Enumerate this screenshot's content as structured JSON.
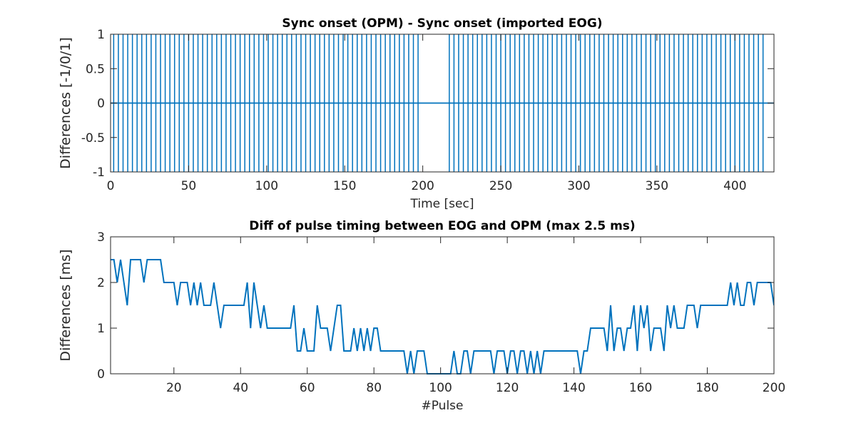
{
  "chart_data": [
    {
      "type": "spike",
      "title": "Sync onset (OPM) - Sync onset (imported EOG)",
      "xlabel": "Time [sec]",
      "ylabel": "Differences [-1/0/1]",
      "xlim": [
        0,
        425
      ],
      "xticks": [
        0,
        50,
        100,
        150,
        200,
        250,
        300,
        350,
        400
      ],
      "ylim": [
        -1,
        1
      ],
      "yticks": [
        -1,
        -0.5,
        0,
        0.5,
        1
      ],
      "series": [
        {
          "color": "#0072bd",
          "x": [
            2,
            5,
            8,
            11,
            14,
            17,
            20,
            23,
            26,
            29,
            32,
            35,
            38,
            41,
            44,
            47,
            50,
            53,
            56,
            59,
            62,
            65,
            68,
            71,
            74,
            77,
            80,
            83,
            86,
            89,
            92,
            95,
            98,
            101,
            104,
            107,
            110,
            113,
            116,
            119,
            122,
            125,
            128,
            131,
            134,
            137,
            140,
            143,
            146,
            149,
            152,
            155,
            158,
            161,
            164,
            167,
            170,
            173,
            176,
            179,
            182,
            185,
            188,
            191,
            194,
            197,
            217,
            220,
            223,
            226,
            229,
            232,
            235,
            238,
            241,
            244,
            247,
            250,
            253,
            256,
            259,
            262,
            265,
            268,
            271,
            274,
            277,
            280,
            283,
            286,
            289,
            292,
            295,
            298,
            301,
            304,
            307,
            310,
            313,
            316,
            319,
            322,
            325,
            328,
            331,
            334,
            337,
            340,
            343,
            346,
            349,
            352,
            355,
            358,
            361,
            364,
            367,
            370,
            373,
            376,
            379,
            382,
            385,
            388,
            391,
            394,
            397,
            400,
            403,
            406,
            409,
            412,
            415,
            418
          ],
          "values": [
            1,
            1,
            1,
            1,
            1,
            1,
            1,
            1,
            1,
            1,
            1,
            1,
            1,
            1,
            1,
            1,
            1,
            1,
            1,
            1,
            1,
            1,
            1,
            1,
            1,
            1,
            1,
            1,
            1,
            1,
            1,
            1,
            1,
            1,
            1,
            1,
            1,
            1,
            1,
            1,
            1,
            1,
            1,
            1,
            1,
            1,
            1,
            1,
            1,
            1,
            1,
            1,
            1,
            1,
            1,
            1,
            1,
            1,
            1,
            1,
            1,
            1,
            1,
            1,
            1,
            1,
            1,
            1,
            1,
            1,
            1,
            1,
            1,
            1,
            1,
            1,
            1,
            1,
            1,
            1,
            1,
            1,
            1,
            1,
            1,
            1,
            1,
            1,
            1,
            1,
            1,
            1,
            1,
            1,
            1,
            1,
            1,
            1,
            1,
            1,
            1,
            1,
            1,
            1,
            1,
            1,
            1,
            1,
            1,
            1,
            1,
            1,
            1,
            1,
            1,
            1,
            1,
            1,
            1,
            1,
            1,
            1,
            1,
            1,
            1,
            1,
            1,
            1,
            1,
            1,
            1,
            1,
            1,
            1
          ]
        },
        {
          "color": "#0072bd",
          "x": [
            2,
            5,
            8,
            11,
            14,
            17,
            20,
            23,
            26,
            29,
            32,
            35,
            38,
            41,
            44,
            47,
            50,
            53,
            56,
            59,
            62,
            65,
            68,
            71,
            74,
            77,
            80,
            83,
            86,
            89,
            92,
            95,
            98,
            101,
            104,
            107,
            110,
            113,
            116,
            119,
            122,
            125,
            128,
            131,
            134,
            137,
            140,
            143,
            146,
            149,
            152,
            155,
            158,
            161,
            164,
            167,
            170,
            173,
            176,
            179,
            182,
            185,
            188,
            191,
            194,
            197,
            217,
            220,
            223,
            226,
            229,
            232,
            235,
            238,
            241,
            244,
            247,
            250,
            253,
            256,
            259,
            262,
            265,
            268,
            271,
            274,
            277,
            280,
            283,
            286,
            289,
            292,
            295,
            298,
            301,
            304,
            307,
            310,
            313,
            316,
            319,
            322,
            325,
            328,
            331,
            334,
            337,
            340,
            343,
            346,
            349,
            352,
            355,
            358,
            361,
            364,
            367,
            370,
            373,
            376,
            379,
            382,
            385,
            388,
            391,
            394,
            397,
            400,
            403,
            406,
            409,
            412,
            415,
            418
          ],
          "values": [
            -1,
            -1,
            -1,
            -1,
            -1,
            -1,
            -1,
            -1,
            -1,
            -1,
            -1,
            -1,
            -1,
            -1,
            -1,
            -1,
            -1,
            -1,
            -1,
            -1,
            -1,
            -1,
            -1,
            -1,
            -1,
            -1,
            -1,
            -1,
            -1,
            -1,
            -1,
            -1,
            -1,
            -1,
            -1,
            -1,
            -1,
            -1,
            -1,
            -1,
            -1,
            -1,
            -1,
            -1,
            -1,
            -1,
            -1,
            -1,
            -1,
            -1,
            -1,
            -1,
            -1,
            -1,
            -1,
            -1,
            -1,
            -1,
            -1,
            -1,
            -1,
            -1,
            -1,
            -1,
            -1,
            -1,
            -1,
            -1,
            -1,
            -1,
            -1,
            -1,
            -1,
            -1,
            -1,
            -1,
            -1,
            -1,
            -1,
            -1,
            -1,
            -1,
            -1,
            -1,
            -1,
            -1,
            -1,
            -1,
            -1,
            -1,
            -1,
            -1,
            -1,
            -1,
            -1,
            -1,
            -1,
            -1,
            -1,
            -1,
            -1,
            -1,
            -1,
            -1,
            -1,
            -1,
            -1,
            -1,
            -1,
            -1,
            -1,
            -1,
            -1,
            -1,
            -1,
            -1,
            -1,
            -1,
            -1,
            -1,
            -1,
            -1,
            -1,
            -1,
            -1,
            -1,
            -1,
            -1,
            -1,
            -1,
            -1,
            -1,
            -1,
            -1
          ]
        }
      ]
    },
    {
      "type": "line",
      "title": "Diff of pulse timing between EOG and OPM (max 2.5 ms)",
      "xlabel": "#Pulse",
      "ylabel": "Differences [ms]",
      "xlim": [
        1,
        200
      ],
      "xticks": [
        20,
        40,
        60,
        80,
        100,
        120,
        140,
        160,
        180,
        200
      ],
      "ylim": [
        0,
        3
      ],
      "yticks": [
        0,
        1,
        2,
        3
      ],
      "series": [
        {
          "color": "#0072bd",
          "x": [
            1,
            2,
            3,
            4,
            5,
            6,
            7,
            8,
            9,
            10,
            11,
            12,
            13,
            14,
            15,
            16,
            17,
            18,
            19,
            20,
            21,
            22,
            23,
            24,
            25,
            26,
            27,
            28,
            29,
            30,
            31,
            32,
            33,
            34,
            35,
            36,
            37,
            38,
            39,
            40,
            41,
            42,
            43,
            44,
            45,
            46,
            47,
            48,
            49,
            50,
            51,
            52,
            53,
            54,
            55,
            56,
            57,
            58,
            59,
            60,
            61,
            62,
            63,
            64,
            65,
            66,
            67,
            68,
            69,
            70,
            71,
            72,
            73,
            74,
            75,
            76,
            77,
            78,
            79,
            80,
            81,
            82,
            83,
            84,
            85,
            86,
            87,
            88,
            89,
            90,
            91,
            92,
            93,
            94,
            95,
            96,
            97,
            98,
            99,
            100,
            101,
            102,
            103,
            104,
            105,
            106,
            107,
            108,
            109,
            110,
            111,
            112,
            113,
            114,
            115,
            116,
            117,
            118,
            119,
            120,
            121,
            122,
            123,
            124,
            125,
            126,
            127,
            128,
            129,
            130,
            131,
            132,
            133,
            134,
            135,
            136,
            137,
            138,
            139,
            140,
            141,
            142,
            143,
            144,
            145,
            146,
            147,
            148,
            149,
            150,
            151,
            152,
            153,
            154,
            155,
            156,
            157,
            158,
            159,
            160,
            161,
            162,
            163,
            164,
            165,
            166,
            167,
            168,
            169,
            170,
            171,
            172,
            173,
            174,
            175,
            176,
            177,
            178,
            179,
            180,
            181,
            182,
            183,
            184,
            185,
            186,
            187,
            188,
            189,
            190,
            191,
            192,
            193,
            194,
            195,
            196,
            197,
            198,
            199,
            200
          ],
          "values": [
            2.5,
            2.5,
            2,
            2.5,
            2,
            1.5,
            2.5,
            2.5,
            2.5,
            2.5,
            2,
            2.5,
            2.5,
            2.5,
            2.5,
            2.5,
            2,
            2,
            2,
            2,
            1.5,
            2,
            2,
            2,
            1.5,
            2,
            1.5,
            2,
            1.5,
            1.5,
            1.5,
            2,
            1.5,
            1,
            1.5,
            1.5,
            1.5,
            1.5,
            1.5,
            1.5,
            1.5,
            2,
            1,
            2,
            1.5,
            1,
            1.5,
            1,
            1,
            1,
            1,
            1,
            1,
            1,
            1,
            1.5,
            0.5,
            0.5,
            1,
            0.5,
            0.5,
            0.5,
            1.5,
            1,
            1,
            1,
            0.5,
            1,
            1.5,
            1.5,
            0.5,
            0.5,
            0.5,
            1,
            0.5,
            1,
            0.5,
            1,
            0.5,
            1,
            1,
            0.5,
            0.5,
            0.5,
            0.5,
            0.5,
            0.5,
            0.5,
            0.5,
            0,
            0.5,
            0,
            0.5,
            0.5,
            0.5,
            0,
            0,
            0,
            0,
            0,
            0,
            0,
            0,
            0.5,
            0,
            0,
            0.5,
            0.5,
            0,
            0.5,
            0.5,
            0.5,
            0.5,
            0.5,
            0.5,
            0,
            0.5,
            0.5,
            0.5,
            0,
            0.5,
            0.5,
            0,
            0.5,
            0.5,
            0,
            0.5,
            0,
            0.5,
            0,
            0.5,
            0.5,
            0.5,
            0.5,
            0.5,
            0.5,
            0.5,
            0.5,
            0.5,
            0.5,
            0.5,
            0,
            0.5,
            0.5,
            1,
            1,
            1,
            1,
            1,
            0.5,
            1.5,
            0.5,
            1,
            1,
            0.5,
            1,
            1,
            1.5,
            0.5,
            1.5,
            1,
            1.5,
            0.5,
            1,
            1,
            1,
            0.5,
            1.5,
            1,
            1.5,
            1,
            1,
            1,
            1.5,
            1.5,
            1.5,
            1,
            1.5,
            1.5,
            1.5,
            1.5,
            1.5,
            1.5,
            1.5,
            1.5,
            1.5,
            2,
            1.5,
            2,
            1.5,
            1.5,
            2,
            2,
            1.5,
            2,
            2,
            2,
            2,
            2,
            1.5
          ]
        }
      ]
    }
  ]
}
